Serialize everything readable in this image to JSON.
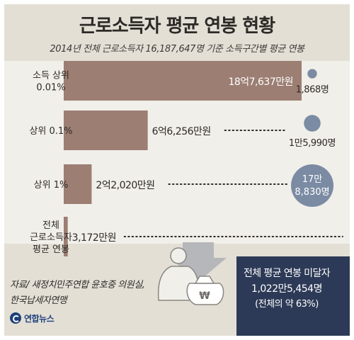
{
  "title": "근로소득자 평균 연봉 현황",
  "subtitle": "2014년 전체 근로소득자 16,187,647명 기준 소득구간별 평균 연봉",
  "source": {
    "line1": "자료/ 새정치민주연합 윤호중 의원실,",
    "line2": "한국납세자연맹"
  },
  "logo": "연합뉴스",
  "summary": {
    "line1": "전체 평균 연봉 미달자",
    "line2": "1,022만5,454명",
    "line3": "(전체의 약 63%)"
  },
  "colors": {
    "bar": "#9c7e73",
    "bubble": "#7b8ba3",
    "background": "#e3dfd5",
    "band": "#f1efea",
    "panel": "#2d3a57"
  },
  "chart_data": {
    "type": "bar",
    "orientation": "horizontal",
    "unit": "만원",
    "categories": [
      "소득 상위 0.01%",
      "상위 0.1%",
      "상위 1%",
      "전체 근로소득자 평균 연봉"
    ],
    "category_lines": [
      [
        "소득 상위",
        "0.01%"
      ],
      [
        "상위 0.1%"
      ],
      [
        "상위 1%"
      ],
      [
        "전체",
        "근로소득자",
        "평균 연봉"
      ]
    ],
    "values": [
      187637,
      66256,
      22020,
      3172
    ],
    "value_labels": [
      "18억7,637만원",
      "6억6,256만원",
      "2억2,020만원",
      "3,172만원"
    ],
    "counts": [
      1868,
      15990,
      178830,
      null
    ],
    "count_labels": [
      [
        "1,868명"
      ],
      [
        "1만5,990명"
      ],
      [
        "17만",
        "8,830명"
      ],
      null
    ]
  }
}
